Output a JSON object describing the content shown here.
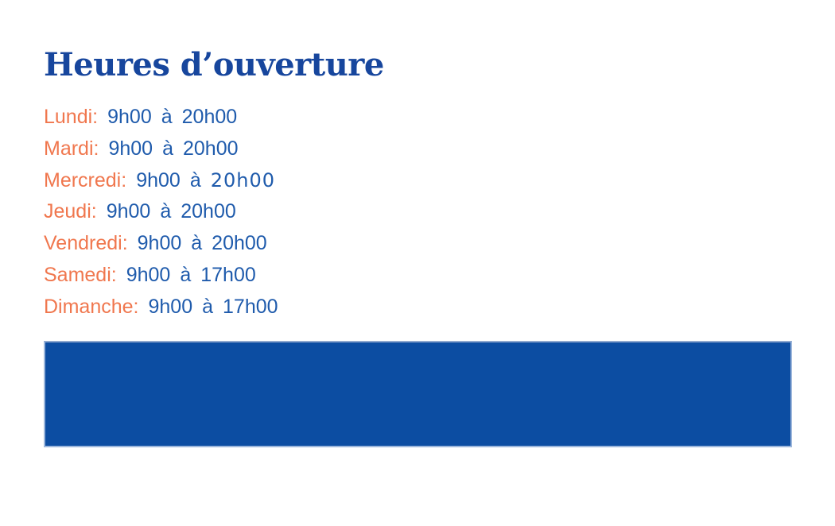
{
  "title": {
    "text": "Heures d’ouverture"
  },
  "schedule": {
    "rows": [
      {
        "day": "Lundi:",
        "open": "9h00",
        "sep": "à",
        "close": "20h00"
      },
      {
        "day": "Mardi:",
        "open": "9h00",
        "sep": "à",
        "close": "20h00"
      },
      {
        "day": "Mercredi:",
        "open": "9h00",
        "sep": "à",
        "close": "20h00"
      },
      {
        "day": "Jeudi:",
        "open": "9h00",
        "sep": "à",
        "close": "20h00"
      },
      {
        "day": "Vendredi:",
        "open": "9h00",
        "sep": "à",
        "close": "20h00"
      },
      {
        "day": "Samedi:",
        "open": "9h00",
        "sep": "à",
        "close": "17h00"
      },
      {
        "day": "Dimanche:",
        "open": "9h00",
        "sep": "à",
        "close": "17h00"
      }
    ]
  },
  "colors": {
    "title_blue": "#17469d",
    "time_blue": "#1f5bac",
    "day_orange": "#f0774e",
    "band_blue": "#0c4da2",
    "band_edge": "#9db7dc"
  }
}
